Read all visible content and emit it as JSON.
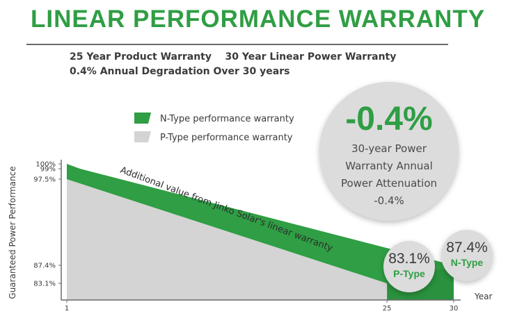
{
  "header": {
    "title": "LINEAR PERFORMANCE WARRANTY",
    "line1": "25 Year Product Warranty    30 Year Linear Power Warranty",
    "line2": "0.4% Annual Degradation Over 30 years"
  },
  "callout": {
    "value": "-0.4%",
    "line1": "30-year Power",
    "line2": "Warranty Annual",
    "line3": "Power Attenuation",
    "line4": "-0.4%"
  },
  "badges": {
    "p": {
      "value": "83.1%",
      "label": "P-Type"
    },
    "n": {
      "value": "87.4%",
      "label": "N-Type"
    }
  },
  "colors": {
    "green": "#2f9e44",
    "dark_green": "#237a34",
    "gray_area": "#d4d4d4",
    "axis": "#6a6a6a",
    "text": "#3a3a3a"
  },
  "chart_data": {
    "type": "area",
    "ylabel": "Guaranteed Power Performance",
    "xlabel": "Year",
    "x_ticks": [
      "1",
      "25",
      "30"
    ],
    "y_ticks": [
      "100%",
      "99%",
      "97.5%",
      "87.4%",
      "83.1%"
    ],
    "xlim": [
      1,
      30
    ],
    "series": [
      {
        "name": "N-Type performance warranty",
        "x": [
          1,
          2,
          30
        ],
        "y": [
          100,
          99,
          87.4
        ]
      },
      {
        "name": "P-Type performance warranty",
        "x": [
          1,
          25
        ],
        "y": [
          97.5,
          83.1
        ]
      }
    ],
    "annotation": "Additional value from Jinko Solar's linear warranty"
  }
}
